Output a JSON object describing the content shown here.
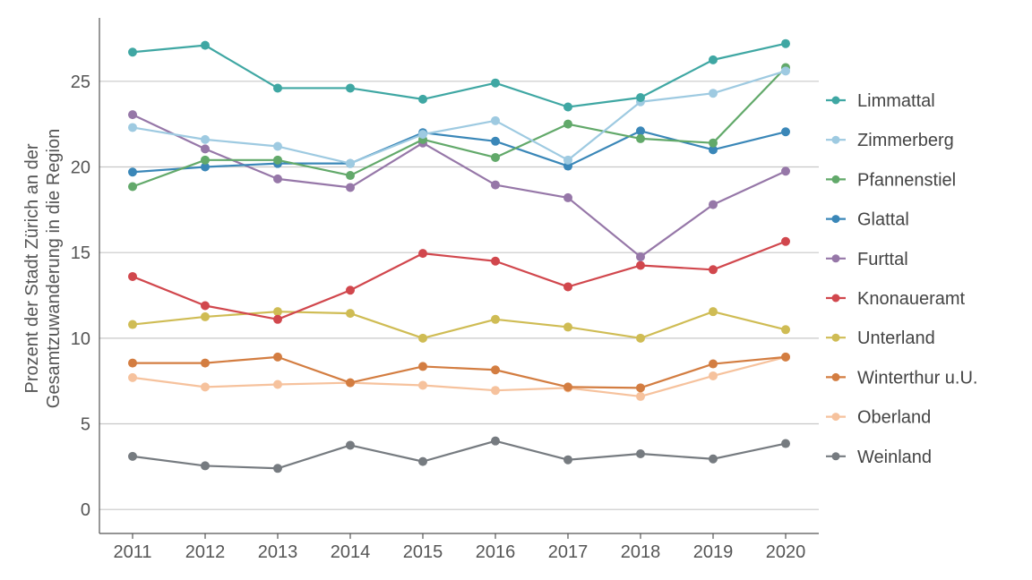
{
  "chart_data": {
    "type": "line",
    "title": "",
    "xlabel": "",
    "ylabel_lines": [
      "Prozent der Stadt Zürich an der",
      "Gesamtzuwanderung in die Region"
    ],
    "x": [
      "2011",
      "2012",
      "2013",
      "2014",
      "2015",
      "2016",
      "2017",
      "2018",
      "2019",
      "2020"
    ],
    "yticks": [
      "0",
      "5",
      "10",
      "15",
      "20",
      "25"
    ],
    "ytick_values": [
      0,
      5,
      10,
      15,
      20,
      25
    ],
    "ylim": [
      -1.4,
      28.7
    ],
    "grid": "horizontal",
    "legend_position": "right",
    "series": [
      {
        "name": "Limmattal",
        "color": "#3fa7a3",
        "values": [
          26.7,
          27.1,
          24.6,
          24.6,
          23.95,
          24.9,
          23.5,
          24.05,
          26.25,
          27.2
        ]
      },
      {
        "name": "Zimmerberg",
        "color": "#9ecae1",
        "values": [
          22.3,
          21.6,
          21.2,
          20.2,
          21.9,
          22.7,
          20.4,
          23.8,
          24.3,
          25.6
        ]
      },
      {
        "name": "Pfannenstiel",
        "color": "#62a96a",
        "values": [
          18.85,
          20.4,
          20.4,
          19.5,
          21.6,
          20.55,
          22.5,
          21.65,
          21.4,
          25.8
        ]
      },
      {
        "name": "Glattal",
        "color": "#3a87b8",
        "values": [
          19.7,
          20.0,
          20.2,
          20.2,
          22.0,
          21.5,
          20.05,
          22.1,
          21.0,
          22.05
        ]
      },
      {
        "name": "Furttal",
        "color": "#9677a8",
        "values": [
          23.05,
          21.05,
          19.3,
          18.8,
          21.4,
          18.95,
          18.2,
          14.75,
          17.8,
          19.75
        ]
      },
      {
        "name": "Knonaueramt",
        "color": "#d1474d",
        "values": [
          13.6,
          11.9,
          11.1,
          12.8,
          14.95,
          14.5,
          13.0,
          14.25,
          14.0,
          15.65
        ]
      },
      {
        "name": "Unterland",
        "color": "#cfbc54",
        "values": [
          10.8,
          11.25,
          11.55,
          11.45,
          10.0,
          11.1,
          10.65,
          10.0,
          11.55,
          10.5
        ]
      },
      {
        "name": "Winterthur u.U.",
        "color": "#d37d41",
        "values": [
          8.55,
          8.55,
          8.9,
          7.4,
          8.35,
          8.15,
          7.15,
          7.1,
          8.5,
          8.9
        ]
      },
      {
        "name": "Oberland",
        "color": "#f6c29d",
        "values": [
          7.7,
          7.15,
          7.3,
          7.4,
          7.25,
          6.95,
          7.1,
          6.6,
          7.8,
          8.9
        ]
      },
      {
        "name": "Weinland",
        "color": "#767b80",
        "values": [
          3.1,
          2.55,
          2.4,
          3.75,
          2.8,
          4.0,
          2.9,
          3.25,
          2.95,
          3.85
        ]
      }
    ]
  }
}
